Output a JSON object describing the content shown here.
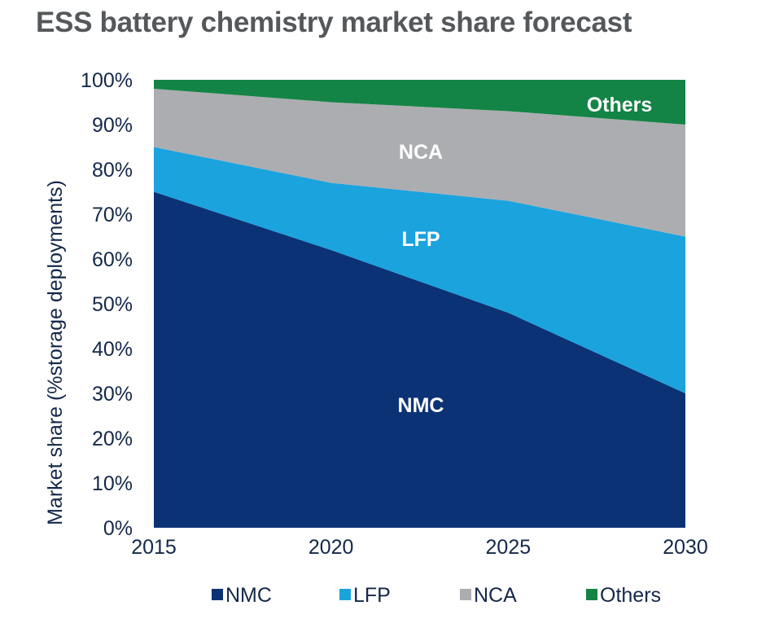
{
  "chart_data": {
    "type": "area",
    "stacked": true,
    "title": "ESS battery chemistry market share forecast",
    "xlabel": "",
    "ylabel": "Market share (%storage deployments)",
    "x": [
      2015,
      2020,
      2025,
      2030
    ],
    "x_tick_labels": [
      "2015",
      "2020",
      "2025",
      "2030"
    ],
    "ylim": [
      0,
      100
    ],
    "y_tick_labels": [
      "0%",
      "10%",
      "20%",
      "30%",
      "40%",
      "50%",
      "60%",
      "70%",
      "80%",
      "90%",
      "100%"
    ],
    "y_ticks": [
      0,
      10,
      20,
      30,
      40,
      50,
      60,
      70,
      80,
      90,
      100
    ],
    "grid": false,
    "legend_position": "bottom",
    "series": [
      {
        "name": "NMC",
        "color": "#0b3275",
        "values": [
          75,
          62,
          48,
          30
        ],
        "label": "NMC"
      },
      {
        "name": "LFP",
        "color": "#1ba3de",
        "values": [
          10,
          15,
          25,
          35
        ],
        "label": "LFP"
      },
      {
        "name": "NCA",
        "color": "#acadb1",
        "values": [
          13,
          18,
          20,
          25
        ],
        "label": "NCA"
      },
      {
        "name": "Others",
        "color": "#138445",
        "values": [
          2,
          5,
          7,
          10
        ],
        "label": "Others"
      }
    ]
  }
}
